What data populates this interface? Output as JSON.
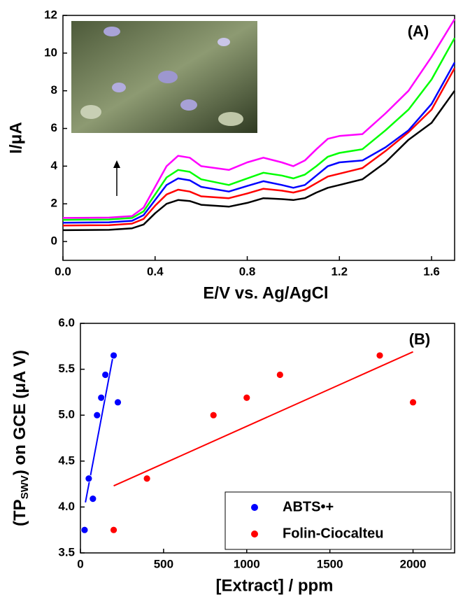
{
  "chart_data": [
    {
      "type": "line",
      "annotation": "(A)",
      "xlabel": "E/V vs. Ag/AgCl",
      "ylabel": "I/μA",
      "x": [
        0,
        0.2,
        0.3,
        0.35,
        0.4,
        0.45,
        0.5,
        0.55,
        0.6,
        0.72,
        0.8,
        0.87,
        0.95,
        1.0,
        1.05,
        1.1,
        1.15,
        1.2,
        1.3,
        1.4,
        1.5,
        1.6,
        1.7
      ],
      "series": [
        {
          "color": "#000000",
          "values": [
            0.6,
            0.62,
            0.7,
            0.9,
            1.5,
            2.0,
            2.2,
            2.15,
            1.95,
            1.85,
            2.05,
            2.3,
            2.25,
            2.2,
            2.3,
            2.6,
            2.85,
            3.0,
            3.3,
            4.2,
            5.4,
            6.3,
            8.0
          ]
        },
        {
          "color": "#ff0000",
          "values": [
            0.85,
            0.87,
            0.95,
            1.2,
            1.9,
            2.5,
            2.75,
            2.65,
            2.4,
            2.3,
            2.55,
            2.8,
            2.7,
            2.6,
            2.75,
            3.1,
            3.45,
            3.6,
            3.9,
            4.8,
            5.8,
            7.0,
            9.2
          ]
        },
        {
          "color": "#0000ff",
          "values": [
            1.0,
            1.02,
            1.1,
            1.4,
            2.2,
            3.0,
            3.35,
            3.25,
            2.9,
            2.65,
            2.95,
            3.2,
            3.0,
            2.85,
            3.0,
            3.5,
            4.0,
            4.2,
            4.3,
            5.0,
            5.9,
            7.3,
            9.5
          ]
        },
        {
          "color": "#00ff00",
          "values": [
            1.15,
            1.17,
            1.25,
            1.6,
            2.5,
            3.4,
            3.8,
            3.7,
            3.3,
            3.0,
            3.35,
            3.65,
            3.5,
            3.35,
            3.55,
            4.0,
            4.5,
            4.7,
            4.9,
            5.9,
            7.0,
            8.6,
            10.8
          ]
        },
        {
          "color": "#ff00ff",
          "values": [
            1.25,
            1.27,
            1.35,
            1.8,
            2.9,
            4.0,
            4.55,
            4.45,
            4.0,
            3.8,
            4.2,
            4.45,
            4.2,
            4.0,
            4.3,
            4.9,
            5.45,
            5.6,
            5.7,
            6.8,
            8.0,
            9.8,
            11.8
          ]
        }
      ],
      "xlim": [
        0,
        1.7
      ],
      "xticks": [
        {
          "value": 0,
          "label": "0.0"
        },
        0.4,
        0.8,
        1.2,
        1.6
      ],
      "ylim": [
        -1,
        12
      ],
      "yticks": [
        0,
        2,
        4,
        6,
        8,
        10,
        12
      ]
    },
    {
      "type": "scatter",
      "annotation": "(B)",
      "xlabel": "[Extract] / ppm",
      "ylabel": {
        "main": "(TP",
        "sub": "SWV",
        "rest": ") on GCE (μA V)"
      },
      "series": [
        {
          "name": "ABTS•+",
          "color": "#0000ff",
          "x": [
            25,
            50,
            75,
            100,
            125,
            150,
            200,
            225
          ],
          "values": [
            3.75,
            4.31,
            4.09,
            5.0,
            5.19,
            5.44,
            5.65,
            5.14
          ],
          "fit": {
            "x": [
              30,
              200
            ],
            "y": [
              4.05,
              5.68
            ]
          }
        },
        {
          "name": "Folin-Ciocalteu",
          "color": "#ff0000",
          "x": [
            200,
            400,
            800,
            1000,
            1200,
            1800,
            2000
          ],
          "values": [
            3.75,
            4.31,
            5.0,
            5.19,
            5.44,
            5.65,
            5.14
          ],
          "fit": {
            "x": [
              200,
              2000
            ],
            "y": [
              4.23,
              5.69
            ]
          }
        }
      ],
      "xlim": [
        0,
        2250
      ],
      "xticks": [
        0,
        500,
        1000,
        1500,
        2000
      ],
      "ylim": [
        3.5,
        6.0
      ],
      "yticks": [
        3.5,
        {
          "value": 4,
          "label": "4.0"
        },
        4.5,
        {
          "value": 5,
          "label": "5.0"
        },
        5.5,
        {
          "value": 6,
          "label": "6.0"
        }
      ],
      "legend": "lower right"
    }
  ]
}
